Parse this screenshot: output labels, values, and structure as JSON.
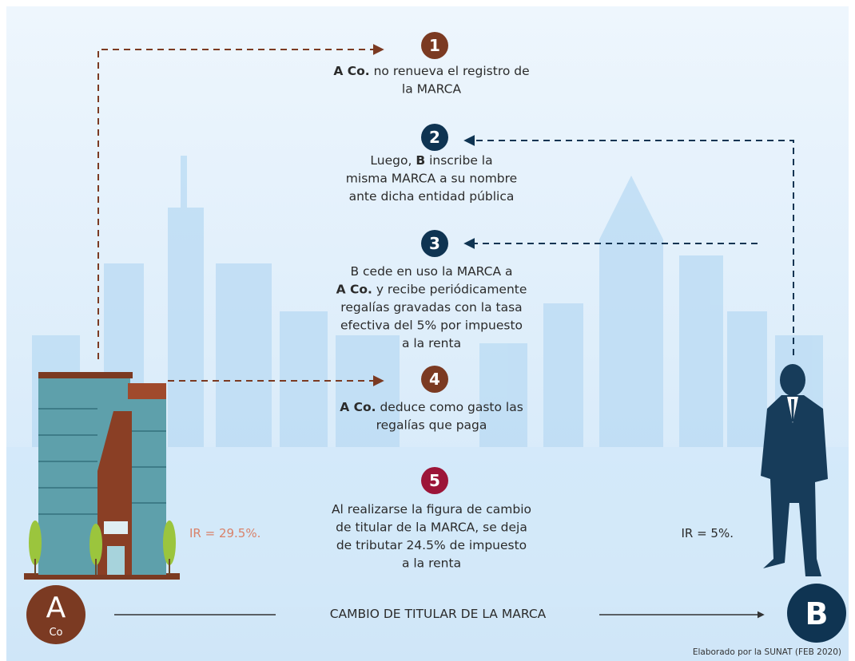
{
  "steps": [
    {
      "number": "1",
      "color": "#7b3a22",
      "lines": [
        [
          {
            "text": "A Co.",
            "bold": true
          },
          {
            "text": " no renueva el registro de"
          }
        ],
        [
          {
            "text": "la MARCA"
          }
        ]
      ]
    },
    {
      "number": "2",
      "color": "#0f3452",
      "lines": [
        [
          {
            "text": "Luego, "
          },
          {
            "text": "B",
            "bold": true
          },
          {
            "text": " inscribe la"
          }
        ],
        [
          {
            "text": "misma MARCA a su nombre"
          }
        ],
        [
          {
            "text": "ante dicha entidad pública"
          }
        ]
      ]
    },
    {
      "number": "3",
      "color": "#0f3452",
      "lines": [
        [
          {
            "text": "B cede en uso la MARCA a"
          }
        ],
        [
          {
            "text": "A Co.",
            "bold": true
          },
          {
            "text": " y recibe periódicamente"
          }
        ],
        [
          {
            "text": "regalías gravadas con la tasa"
          }
        ],
        [
          {
            "text": "efectiva del 5% por impuesto"
          }
        ],
        [
          {
            "text": "a la renta"
          }
        ]
      ]
    },
    {
      "number": "4",
      "color": "#7b3a22",
      "lines": [
        [
          {
            "text": "A Co.",
            "bold": true
          },
          {
            "text": " deduce como gasto las"
          }
        ],
        [
          {
            "text": "regalías que paga"
          }
        ]
      ]
    },
    {
      "number": "5",
      "color": "#9c1538",
      "lines": [
        [
          {
            "text": "Al realizarse la figura de cambio"
          }
        ],
        [
          {
            "text": "de titular de la MARCA, se deja"
          }
        ],
        [
          {
            "text": "de tributar 24.5% de impuesto"
          }
        ],
        [
          {
            "text": "a la renta"
          }
        ]
      ]
    }
  ],
  "left": {
    "rate": "IR = 29.5%.",
    "badge": "A",
    "badge_sub": "Co"
  },
  "right": {
    "rate": "IR = 5%.",
    "badge": "B"
  },
  "bottom_label": "CAMBIO DE TITULAR DE LA MARCA",
  "credit": "Elaborado por la SUNAT (FEB 2020)"
}
